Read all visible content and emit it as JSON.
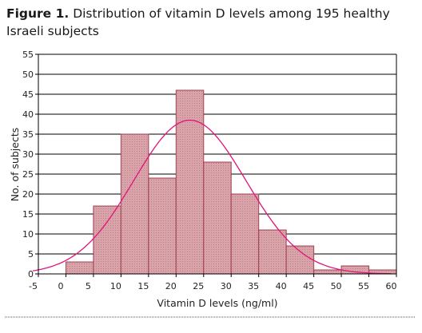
{
  "caption": {
    "figure_label": "Figure 1.",
    "text": " Distribution of vitamin D levels among 195 healthy Israeli subjects"
  },
  "colors": {
    "bar_fill": "#d9a3aa",
    "bar_stroke": "#a04050",
    "curve": "#e0157a",
    "grid": "#000000"
  },
  "chart_data": {
    "type": "bar",
    "title": "Distribution of vitamin D levels among 195 healthy Israeli subjects",
    "xlabel": "Vitamin D levels (ng/ml)",
    "ylabel": "No. of subjects",
    "xlim": [
      -5,
      60
    ],
    "ylim": [
      0,
      55
    ],
    "x_ticks": [
      -5,
      0,
      5,
      10,
      15,
      20,
      25,
      30,
      35,
      40,
      45,
      50,
      55,
      60
    ],
    "y_ticks": [
      0,
      5,
      10,
      15,
      20,
      25,
      30,
      35,
      40,
      45,
      50,
      55
    ],
    "bins": [
      {
        "from": 0,
        "to": 5,
        "count": 3
      },
      {
        "from": 5,
        "to": 10,
        "count": 17
      },
      {
        "from": 10,
        "to": 15,
        "count": 35
      },
      {
        "from": 15,
        "to": 20,
        "count": 24
      },
      {
        "from": 20,
        "to": 25,
        "count": 46
      },
      {
        "from": 25,
        "to": 30,
        "count": 28
      },
      {
        "from": 30,
        "to": 35,
        "count": 20
      },
      {
        "from": 35,
        "to": 40,
        "count": 11
      },
      {
        "from": 40,
        "to": 45,
        "count": 7
      },
      {
        "from": 45,
        "to": 50,
        "count": 1
      },
      {
        "from": 50,
        "to": 55,
        "count": 2
      },
      {
        "from": 55,
        "to": 60,
        "count": 1
      }
    ],
    "normal_curve": {
      "mean": 22.5,
      "sd": 10.2,
      "peak": 38.5
    },
    "grid": true
  }
}
